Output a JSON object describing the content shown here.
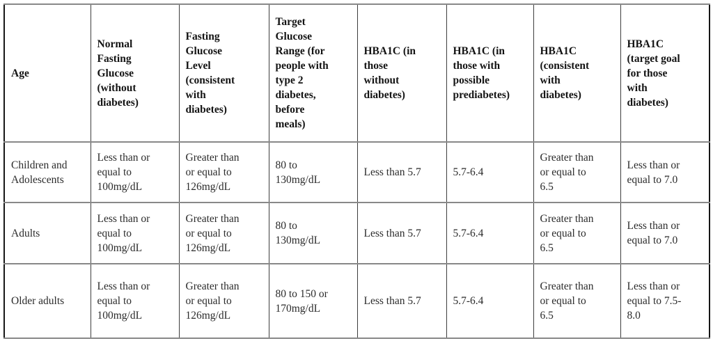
{
  "table": {
    "title_semantic": "Glucose and HBA1C reference ranges by age group",
    "headers": [
      "Age",
      "Normal\nFasting\nGlucose\n(without\ndiabetes)",
      "Fasting\nGlucose\nLevel\n(consistent\nwith\ndiabetes)",
      "Target\nGlucose\nRange (for\npeople with\ntype 2\ndiabetes,\nbefore\nmeals)",
      "HBA1C (in\nthose\nwithout\ndiabetes)",
      "HBA1C (in\nthose with\npossible\nprediabetes)",
      "HBA1C\n(consistent\nwith\ndiabetes)",
      "HBA1C\n(target goal\nfor those\nwith\ndiabetes)"
    ],
    "rows": [
      {
        "cells": [
          "Children and\nAdolescents",
          "Less than or\nequal to\n100mg/dL",
          "Greater than\nor equal to\n126mg/dL",
          "80 to\n130mg/dL",
          "Less than 5.7",
          "5.7-6.4",
          "Greater than\nor equal to\n6.5",
          "Less than or\nequal to 7.0"
        ]
      },
      {
        "cells": [
          "Adults",
          "Less than or\nequal to\n100mg/dL",
          "Greater than\nor equal to\n126mg/dL",
          "80 to\n130mg/dL",
          "Less than 5.7",
          "5.7-6.4",
          "Greater than\nor equal to\n6.5",
          "Less than or\nequal to 7.0"
        ]
      },
      {
        "cells": [
          "Older adults",
          "Less than or\nequal to\n100mg/dL",
          "Greater than\nor equal to\n126mg/dL",
          "80 to 150 or\n170mg/dL",
          "Less than 5.7",
          "5.7-6.4",
          "Greater than\nor equal to\n6.5",
          "Less than or\nequal to 7.5-\n8.0"
        ]
      }
    ],
    "colors": {
      "outer_border": "#161616",
      "vertical_rule": "#3d3d3d",
      "horizontal_rule": "#888888",
      "header_text": "#141414",
      "body_text": "#2b2b2b",
      "background": "#ffffff"
    }
  }
}
